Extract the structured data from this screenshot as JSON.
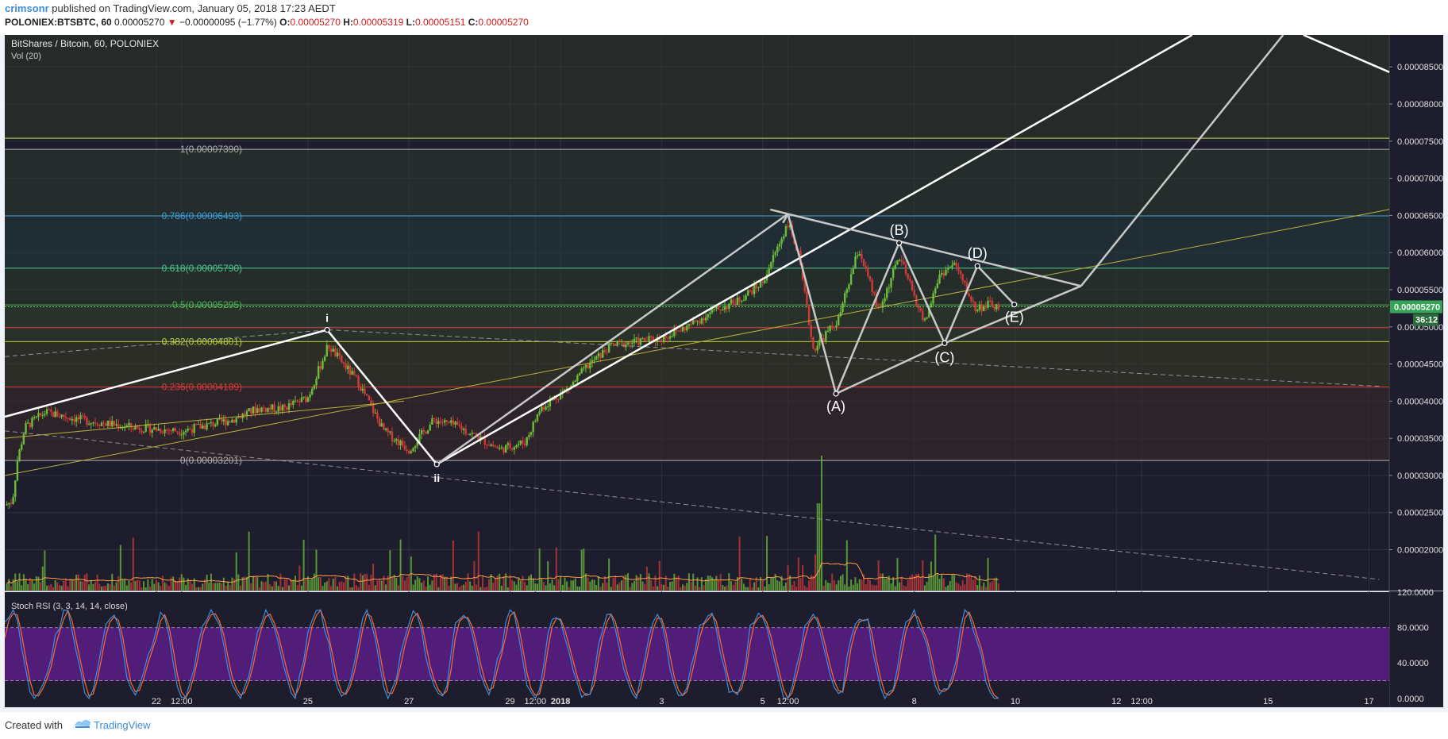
{
  "header": {
    "author": "crimsonr",
    "published_text": "published on TradingView.com, January 05, 2018 17:23 AEDT",
    "symbol": "POLONIEX:BTSBTC, 60",
    "last": "0.00005270",
    "change": "−0.00000095 (−1.77%)",
    "o_label": "O:",
    "o_value": "0.00005270",
    "h_label": "H:",
    "h_value": "0.00005319",
    "l_label": "L:",
    "l_value": "0.00005151",
    "c_label": "C:",
    "c_value": "0.00005270"
  },
  "footer": {
    "created_with": "Created with",
    "brand": "TradingView"
  },
  "colors": {
    "panel_bg": "#1e1d2e",
    "grid": "#2e3040",
    "candle_up": "#6ebd3a",
    "candle_down": "#d13a3a",
    "volume_ma": "#ff9f43",
    "stoch_k": "#3b8fe0",
    "stoch_d": "#ff6a2c",
    "stoch_band": "#5a1d86",
    "price_tag": "#35a456"
  },
  "chart_data": {
    "type": "candlestick",
    "title": "BitShares / Bitcoin, 60, POLONIEX",
    "volume_label": "Vol (20)",
    "x_ticks": [
      {
        "label": "22",
        "t": 3.0
      },
      {
        "label": "12:00",
        "t": 3.5
      },
      {
        "label": "25",
        "t": 6.0
      },
      {
        "label": "27",
        "t": 8.0
      },
      {
        "label": "29",
        "t": 10.0
      },
      {
        "label": "12:00",
        "t": 10.5
      },
      {
        "label": "2018",
        "t": 11.0
      },
      {
        "label": "3",
        "t": 13.0
      },
      {
        "label": "5",
        "t": 15.0
      },
      {
        "label": "12:00",
        "t": 15.5
      },
      {
        "label": "8",
        "t": 18.0
      },
      {
        "label": "10",
        "t": 20.0
      },
      {
        "label": "12",
        "t": 22.0
      },
      {
        "label": "12:00",
        "t": 22.5
      },
      {
        "label": "15",
        "t": 25.0
      },
      {
        "label": "17",
        "t": 27.0
      }
    ],
    "y_axis": {
      "range": [
        1.45e-05,
        8.93e-05
      ],
      "ticks": [
        "0.00008500",
        "0.00008000",
        "0.00007500",
        "0.00007000",
        "0.00006500",
        "0.00006000",
        "0.00005500",
        "0.00005000",
        "0.00004500",
        "0.00004000",
        "0.00003500",
        "0.00003000",
        "0.00002500",
        "0.00002000"
      ]
    },
    "last_price": {
      "value": 5.27e-05,
      "label": "0.00005270",
      "countdown": "36:12"
    },
    "fibonacci": [
      {
        "label": "1(0.00007390)",
        "ratio": "1",
        "price": 7.39e-05,
        "color": "#b0b0b0"
      },
      {
        "label": "0.786(0.00006493)",
        "ratio": "0.786",
        "price": 6.493e-05,
        "color": "#3d9fd8"
      },
      {
        "label": "0.618(0.00005790)",
        "ratio": "0.618",
        "price": 5.79e-05,
        "color": "#4cc98a"
      },
      {
        "label": "0.5(0.00005295)",
        "ratio": "0.5",
        "price": 5.295e-05,
        "color": "#4caf50"
      },
      {
        "label": "0.382(0.00004801)",
        "ratio": "0.382",
        "price": 4.801e-05,
        "color": "#b7d13a"
      },
      {
        "label": "0.236(0.00004189)",
        "ratio": "0.236",
        "price": 4.189e-05,
        "color": "#e03a3a"
      },
      {
        "label": "0(0.00003201)",
        "ratio": "0",
        "price": 3.201e-05,
        "color": "#b0b0b0"
      }
    ],
    "horizontal_lines": [
      {
        "price": 7.54e-05,
        "color": "#c8d84a"
      },
      {
        "price": 4.99e-05,
        "color": "#e03a3a"
      }
    ],
    "path_key": [
      {
        "t": 0.0,
        "p": 2.6e-05
      },
      {
        "t": 0.15,
        "p": 2.65e-05
      },
      {
        "t": 0.25,
        "p": 3.2e-05
      },
      {
        "t": 0.4,
        "p": 3.65e-05
      },
      {
        "t": 0.8,
        "p": 3.85e-05
      },
      {
        "t": 1.5,
        "p": 3.75e-05
      },
      {
        "t": 2.5,
        "p": 3.65e-05
      },
      {
        "t": 3.5,
        "p": 3.6e-05
      },
      {
        "t": 4.5,
        "p": 3.75e-05
      },
      {
        "t": 5.0,
        "p": 3.9e-05
      },
      {
        "t": 5.5,
        "p": 3.9e-05
      },
      {
        "t": 6.0,
        "p": 4.05e-05
      },
      {
        "t": 6.4,
        "p": 4.75e-05
      },
      {
        "t": 7.0,
        "p": 4.25e-05
      },
      {
        "t": 7.5,
        "p": 3.6e-05
      },
      {
        "t": 8.0,
        "p": 3.35e-05
      },
      {
        "t": 8.5,
        "p": 3.75e-05
      },
      {
        "t": 9.0,
        "p": 3.65e-05
      },
      {
        "t": 9.8,
        "p": 3.35e-05
      },
      {
        "t": 10.3,
        "p": 3.45e-05
      },
      {
        "t": 10.6,
        "p": 3.9e-05
      },
      {
        "t": 11.2,
        "p": 4.2e-05
      },
      {
        "t": 11.5,
        "p": 4.45e-05
      },
      {
        "t": 12.0,
        "p": 4.75e-05
      },
      {
        "t": 12.5,
        "p": 4.8e-05
      },
      {
        "t": 13.0,
        "p": 4.85e-05
      },
      {
        "t": 13.5,
        "p": 5e-05
      },
      {
        "t": 14.0,
        "p": 5.2e-05
      },
      {
        "t": 14.5,
        "p": 5.35e-05
      },
      {
        "t": 15.0,
        "p": 5.6e-05
      },
      {
        "t": 15.5,
        "p": 6.4e-05
      },
      {
        "t": 15.7,
        "p": 6e-05
      },
      {
        "t": 16.0,
        "p": 4.7e-05
      },
      {
        "t": 16.5,
        "p": 5.1e-05
      },
      {
        "t": 16.9,
        "p": 6.05e-05
      },
      {
        "t": 17.3,
        "p": 5.2e-05
      },
      {
        "t": 17.7,
        "p": 5.95e-05
      },
      {
        "t": 18.2,
        "p": 5.05e-05
      },
      {
        "t": 18.5,
        "p": 5.7e-05
      },
      {
        "t": 18.8,
        "p": 5.85e-05
      },
      {
        "t": 19.2,
        "p": 5.25e-05
      },
      {
        "t": 19.5,
        "p": 5.3e-05
      },
      {
        "t": 19.7,
        "p": 5.25e-05
      }
    ],
    "annotations": [
      {
        "label": "i",
        "t": 6.38,
        "p": 4.96e-05
      },
      {
        "label": "ii",
        "t": 8.55,
        "p": 3.15e-05
      },
      {
        "label": "(A)",
        "t": 16.45,
        "p": 4.1e-05
      },
      {
        "label": "(B)",
        "t": 17.7,
        "p": 6.13e-05
      },
      {
        "label": "(C)",
        "t": 18.6,
        "p": 4.78e-05
      },
      {
        "label": "(D)",
        "t": 19.25,
        "p": 5.82e-05
      },
      {
        "label": "(E)",
        "t": 19.98,
        "p": 5.3e-05
      }
    ],
    "stoch_rsi": {
      "label": "Stoch RSI (3, 3, 14, 14, close)",
      "ticks": [
        "120.0000",
        "80.0000",
        "40.0000",
        "0.0000"
      ],
      "band": [
        20,
        80
      ],
      "range": [
        -10,
        120
      ]
    }
  }
}
